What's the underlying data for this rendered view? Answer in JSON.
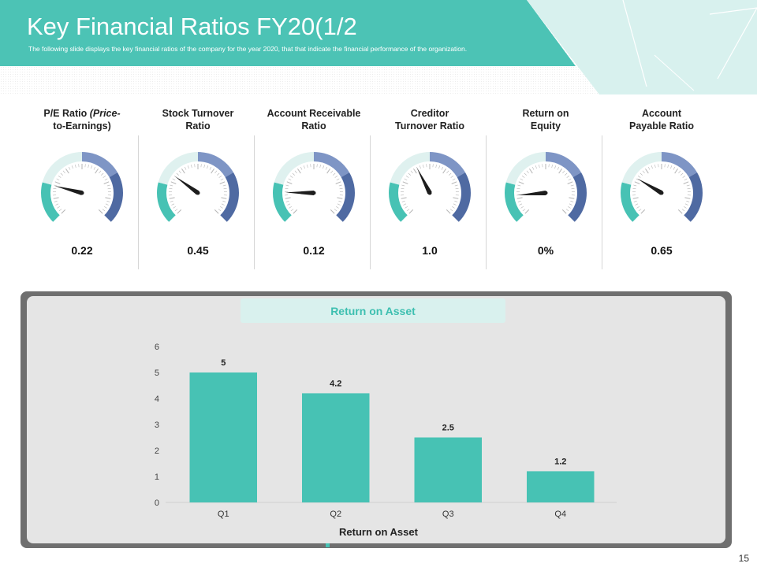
{
  "slide": {
    "title": "Key Financial Ratios FY20(1/2",
    "subtitle": "The following slide displays the key financial ratios of the company  for the year 2020, that that indicate the financial performance of the organization.",
    "page_number": "15"
  },
  "colors": {
    "accent": "#47c2b4",
    "header_teal": "#4cc3b5",
    "light_teal": "#d8f1ee",
    "gauge_blue": "#4f6aa2",
    "gauge_blue_light": "#7e95c5",
    "gauge_pale": "#dff1ef"
  },
  "gauges": [
    {
      "label_line1": "P/E Ratio ",
      "label_italic": "(Price-",
      "label_line2": "to-Earnings)",
      "value": "0.22",
      "needle_pct": 0.22
    },
    {
      "label_line1": "Stock Turnover",
      "label_italic": "",
      "label_line2": "Ratio",
      "value": "0.45",
      "needle_pct": 0.3
    },
    {
      "label_line1": "Account Receivable",
      "label_italic": "",
      "label_line2": "Ratio",
      "value": "0.12",
      "needle_pct": 0.17
    },
    {
      "label_line1": "Creditor",
      "label_italic": "",
      "label_line2": "Turnover Ratio",
      "value": "1.0",
      "needle_pct": 0.4
    },
    {
      "label_line1": "Return on",
      "label_italic": "",
      "label_line2": "Equity",
      "value": "0%",
      "needle_pct": 0.15
    },
    {
      "label_line1": "Account",
      "label_italic": "",
      "label_line2": "Payable Ratio",
      "value": "0.65",
      "needle_pct": 0.28
    }
  ],
  "chart_data": {
    "type": "bar",
    "title": "Return on Asset",
    "xlabel": "Return on Asset",
    "ylabel": "",
    "categories": [
      "Q1",
      "Q2",
      "Q3",
      "Q4"
    ],
    "values": [
      5,
      4.2,
      2.5,
      1.2
    ],
    "data_labels": [
      "5",
      "4.2",
      "2.5",
      "1.2"
    ],
    "ylim": [
      0,
      6
    ],
    "yticks": [
      "0",
      "1",
      "2",
      "3",
      "4",
      "5",
      "6"
    ],
    "grid": false,
    "legend": "none",
    "bar_color": "#47c2b4"
  }
}
